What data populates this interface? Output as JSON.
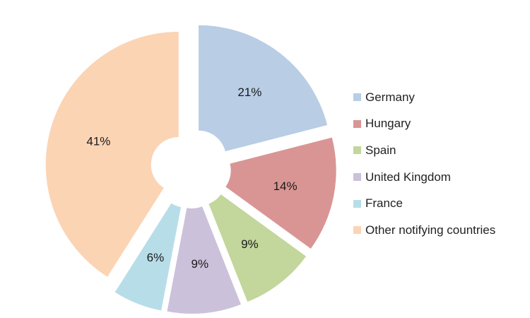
{
  "chart_data": {
    "type": "pie",
    "title": "",
    "categories": [
      "Germany",
      "Hungary",
      "Spain",
      "United Kingdom",
      "France",
      "Other notifying countries"
    ],
    "values": [
      21,
      14,
      9,
      9,
      6,
      41
    ],
    "labels": [
      "21%",
      "14%",
      "9%",
      "9%",
      "6%",
      "41%"
    ],
    "colors": [
      "#b9cde5",
      "#d99594",
      "#c3d69b",
      "#ccc1da",
      "#b7dee8",
      "#fbd4b4"
    ],
    "donut_hole": true,
    "exploded": true,
    "legend_position": "right"
  }
}
